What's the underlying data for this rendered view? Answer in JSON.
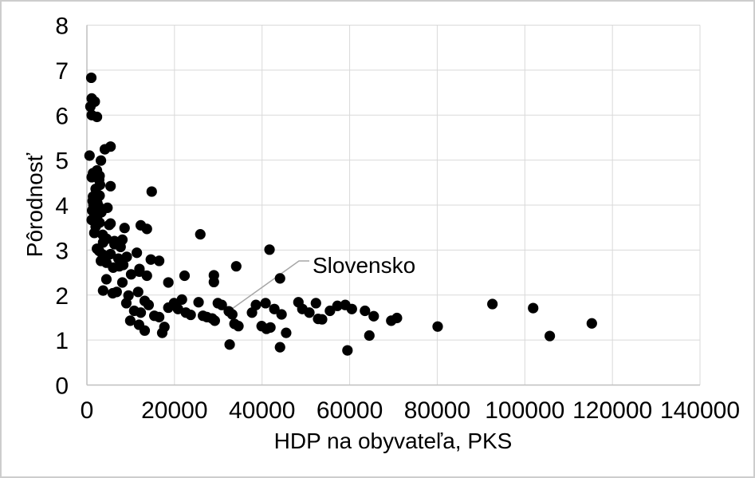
{
  "chart_data": {
    "type": "scatter",
    "title": "",
    "xlabel": "HDP na obyvateľa, PKS",
    "ylabel": "Pôrodnosť",
    "xlim": [
      0,
      140000
    ],
    "ylim": [
      0,
      8
    ],
    "x_ticks": [
      0,
      20000,
      40000,
      60000,
      80000,
      100000,
      120000,
      140000
    ],
    "y_ticks": [
      0,
      1,
      2,
      3,
      4,
      5,
      6,
      7,
      8
    ],
    "grid": true,
    "legend": "none",
    "marker_color": "#000000",
    "gridline_color": "#d9d9d9",
    "axis_line_color": "#bfbfbf",
    "annotation": {
      "label": "Slovensko",
      "target_point": [
        32400,
        1.64
      ],
      "leader_color": "#a6a6a6"
    },
    "points": [
      [
        1000,
        6.83
      ],
      [
        1100,
        6.37
      ],
      [
        1800,
        6.3
      ],
      [
        800,
        6.19
      ],
      [
        1100,
        6.0
      ],
      [
        2300,
        5.96
      ],
      [
        5400,
        5.3
      ],
      [
        4100,
        5.24
      ],
      [
        600,
        5.1
      ],
      [
        3200,
        4.99
      ],
      [
        2300,
        4.77
      ],
      [
        1400,
        4.71
      ],
      [
        2900,
        4.65
      ],
      [
        1100,
        4.62
      ],
      [
        2800,
        4.56
      ],
      [
        3000,
        4.45
      ],
      [
        5400,
        4.42
      ],
      [
        2000,
        4.36
      ],
      [
        14800,
        4.3
      ],
      [
        2900,
        4.21
      ],
      [
        1400,
        4.19
      ],
      [
        1300,
        4.09
      ],
      [
        2400,
        4.04
      ],
      [
        1500,
        4.0
      ],
      [
        2700,
        3.97
      ],
      [
        4700,
        3.94
      ],
      [
        2000,
        3.91
      ],
      [
        1200,
        3.88
      ],
      [
        3300,
        3.84
      ],
      [
        1700,
        3.8
      ],
      [
        2300,
        3.73
      ],
      [
        1100,
        3.67
      ],
      [
        2900,
        3.61
      ],
      [
        5400,
        3.59
      ],
      [
        5100,
        3.56
      ],
      [
        12300,
        3.55
      ],
      [
        2000,
        3.52
      ],
      [
        8600,
        3.49
      ],
      [
        13700,
        3.47
      ],
      [
        1700,
        3.38
      ],
      [
        25900,
        3.35
      ],
      [
        3600,
        3.34
      ],
      [
        4500,
        3.25
      ],
      [
        8100,
        3.23
      ],
      [
        6300,
        3.2
      ],
      [
        3700,
        3.17
      ],
      [
        6300,
        3.13
      ],
      [
        7700,
        3.07
      ],
      [
        2300,
        3.03
      ],
      [
        41700,
        3.01
      ],
      [
        2800,
        2.98
      ],
      [
        11400,
        2.94
      ],
      [
        5400,
        2.91
      ],
      [
        3600,
        2.9
      ],
      [
        9100,
        2.85
      ],
      [
        7200,
        2.81
      ],
      [
        14600,
        2.79
      ],
      [
        3200,
        2.76
      ],
      [
        16500,
        2.76
      ],
      [
        4450,
        2.72
      ],
      [
        8300,
        2.67
      ],
      [
        7400,
        2.64
      ],
      [
        34100,
        2.64
      ],
      [
        6000,
        2.61
      ],
      [
        12000,
        2.58
      ],
      [
        12000,
        2.52
      ],
      [
        10100,
        2.46
      ],
      [
        29000,
        2.44
      ],
      [
        13700,
        2.43
      ],
      [
        22300,
        2.43
      ],
      [
        44100,
        2.37
      ],
      [
        4450,
        2.35
      ],
      [
        29000,
        2.29
      ],
      [
        8100,
        2.28
      ],
      [
        18600,
        2.28
      ],
      [
        3700,
        2.1
      ],
      [
        6800,
        2.07
      ],
      [
        11700,
        2.07
      ],
      [
        5900,
        2.04
      ],
      [
        9500,
        1.99
      ],
      [
        21700,
        1.9
      ],
      [
        13200,
        1.87
      ],
      [
        25500,
        1.84
      ],
      [
        48300,
        1.84
      ],
      [
        92600,
        1.8
      ],
      [
        9000,
        1.82
      ],
      [
        19900,
        1.82
      ],
      [
        29900,
        1.82
      ],
      [
        40800,
        1.82
      ],
      [
        52300,
        1.82
      ],
      [
        14100,
        1.78
      ],
      [
        30800,
        1.78
      ],
      [
        38600,
        1.78
      ],
      [
        59000,
        1.78
      ],
      [
        57200,
        1.76
      ],
      [
        101900,
        1.71
      ],
      [
        18600,
        1.72
      ],
      [
        20800,
        1.69
      ],
      [
        42800,
        1.69
      ],
      [
        49200,
        1.69
      ],
      [
        60500,
        1.69
      ],
      [
        10800,
        1.65
      ],
      [
        32400,
        1.64
      ],
      [
        55500,
        1.65
      ],
      [
        63500,
        1.65
      ],
      [
        12300,
        1.61
      ],
      [
        22600,
        1.61
      ],
      [
        37700,
        1.61
      ],
      [
        50800,
        1.61
      ],
      [
        33200,
        1.57
      ],
      [
        44450,
        1.57
      ],
      [
        23700,
        1.56
      ],
      [
        15400,
        1.54
      ],
      [
        26500,
        1.54
      ],
      [
        65500,
        1.53
      ],
      [
        16500,
        1.51
      ],
      [
        27400,
        1.51
      ],
      [
        70800,
        1.49
      ],
      [
        28600,
        1.48
      ],
      [
        52800,
        1.47
      ],
      [
        53700,
        1.46
      ],
      [
        9900,
        1.43
      ],
      [
        29200,
        1.43
      ],
      [
        69500,
        1.43
      ],
      [
        115300,
        1.37
      ],
      [
        33700,
        1.36
      ],
      [
        80100,
        1.3
      ],
      [
        11900,
        1.34
      ],
      [
        34600,
        1.31
      ],
      [
        39900,
        1.31
      ],
      [
        17700,
        1.29
      ],
      [
        41900,
        1.28
      ],
      [
        41000,
        1.25
      ],
      [
        13200,
        1.21
      ],
      [
        17200,
        1.16
      ],
      [
        45500,
        1.16
      ],
      [
        105700,
        1.09
      ],
      [
        64500,
        1.1
      ],
      [
        32600,
        0.9
      ],
      [
        44100,
        0.84
      ],
      [
        59500,
        0.77
      ]
    ]
  }
}
